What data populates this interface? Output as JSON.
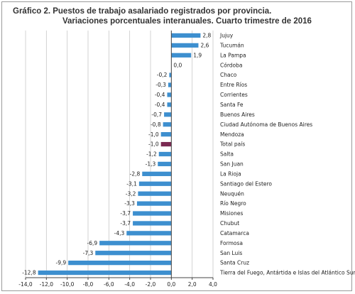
{
  "title_line1": "Gráfico 2. Puestos de trabajo asalariado registrados por provincia.",
  "title_line2": "Variaciones porcentuales interanuales. Cuarto trimestre de 2016",
  "colors": {
    "bar": "#3d8fcf",
    "highlight": "#7b2a52",
    "grid": "#c8c8c8",
    "axis": "#444444"
  },
  "chart_data": {
    "type": "bar",
    "orientation": "horizontal",
    "title": "Gráfico 2. Puestos de trabajo asalariado registrados por provincia. Variaciones porcentuales interanuales. Cuarto trimestre de 2016",
    "xlim": [
      -14.0,
      4.0
    ],
    "xticks": [
      -14.0,
      -12.0,
      -10.0,
      -8.0,
      -6.0,
      -4.0,
      -2.0,
      0.0,
      2.0,
      4.0
    ],
    "xtick_labels": [
      "-14,0",
      "-12,0",
      "-10,0",
      "-8,0",
      "-6,0",
      "-4,0",
      "-2,0",
      "0,0",
      "2,0",
      "4,0"
    ],
    "grid": true,
    "highlight_category": "Total país",
    "categories": [
      "Jujuy",
      "Tucumán",
      "La Pampa",
      "Córdoba",
      "Chaco",
      "Entre Ríos",
      "Corrientes",
      "Santa Fe",
      "Buenos Aires",
      "Ciudad Autónoma de Buenos Aires",
      "Mendoza",
      "Total país",
      "Salta",
      "San Juan",
      "La Rioja",
      "Santiago del Estero",
      "Neuquén",
      "Río Negro",
      "Misiones",
      "Chubut",
      "Catamarca",
      "Formosa",
      "San Luis",
      "Santa Cruz",
      "Tierra del Fuego, Antártida e Islas del Atlántico Sur"
    ],
    "values": [
      2.8,
      2.6,
      1.9,
      0.0,
      -0.2,
      -0.3,
      -0.4,
      -0.4,
      -0.7,
      -0.8,
      -1.0,
      -1.0,
      -1.2,
      -1.3,
      -2.8,
      -3.1,
      -3.2,
      -3.3,
      -3.7,
      -3.7,
      -4.3,
      -6.9,
      -7.3,
      -9.9,
      -12.8
    ],
    "value_labels": [
      "2,8",
      "2,6",
      "1,9",
      "0,0",
      "-0,2",
      "-0,3",
      "-0,4",
      "-0,4",
      "-0,7",
      "-0,8",
      "-1,0",
      "-1,0",
      "-1,2",
      "-1,3",
      "-2,8",
      "-3,1",
      "-3,2",
      "-3,3",
      "-3,7",
      "-3,7",
      "-4,3",
      "-6,9",
      "-7,3",
      "-9,9",
      "-12,8"
    ]
  }
}
